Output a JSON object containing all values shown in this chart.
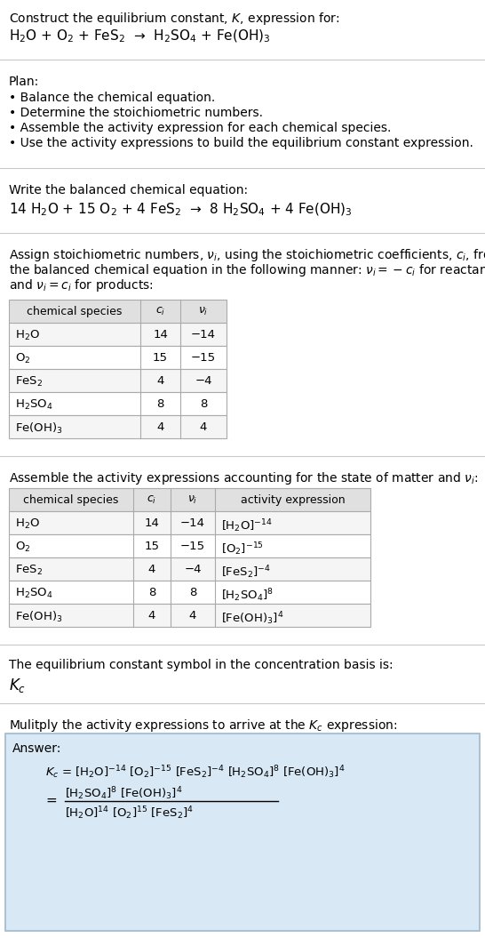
{
  "title_line1": "Construct the equilibrium constant, $K$, expression for:",
  "reaction_unbalanced": "H$_2$O + O$_2$ + FeS$_2$  →  H$_2$SO$_4$ + Fe(OH)$_3$",
  "plan_header": "Plan:",
  "plan_items": [
    "• Balance the chemical equation.",
    "• Determine the stoichiometric numbers.",
    "• Assemble the activity expression for each chemical species.",
    "• Use the activity expressions to build the equilibrium constant expression."
  ],
  "balanced_header": "Write the balanced chemical equation:",
  "reaction_balanced": "14 H$_2$O + 15 O$_2$ + 4 FeS$_2$  →  8 H$_2$SO$_4$ + 4 Fe(OH)$_3$",
  "stoich_intro_lines": [
    "Assign stoichiometric numbers, $\\nu_i$, using the stoichiometric coefficients, $c_i$, from",
    "the balanced chemical equation in the following manner: $\\nu_i = -c_i$ for reactants",
    "and $\\nu_i = c_i$ for products:"
  ],
  "table1_headers": [
    "chemical species",
    "$c_i$",
    "$\\nu_i$"
  ],
  "table1_data": [
    [
      "H$_2$O",
      "14",
      "−14"
    ],
    [
      "O$_2$",
      "15",
      "−15"
    ],
    [
      "FeS$_2$",
      "4",
      "−4"
    ],
    [
      "H$_2$SO$_4$",
      "8",
      "8"
    ],
    [
      "Fe(OH)$_3$",
      "4",
      "4"
    ]
  ],
  "activity_intro": "Assemble the activity expressions accounting for the state of matter and $\\nu_i$:",
  "table2_headers": [
    "chemical species",
    "$c_i$",
    "$\\nu_i$",
    "activity expression"
  ],
  "table2_data": [
    [
      "H$_2$O",
      "14",
      "−14",
      "[H$_2$O]$^{-14}$"
    ],
    [
      "O$_2$",
      "15",
      "−15",
      "[O$_2$]$^{-15}$"
    ],
    [
      "FeS$_2$",
      "4",
      "−4",
      "[FeS$_2$]$^{-4}$"
    ],
    [
      "H$_2$SO$_4$",
      "8",
      "8",
      "[H$_2$SO$_4$]$^8$"
    ],
    [
      "Fe(OH)$_3$",
      "4",
      "4",
      "[Fe(OH)$_3$]$^4$"
    ]
  ],
  "kc_text": "The equilibrium constant symbol in the concentration basis is:",
  "kc_symbol": "$K_c$",
  "multiply_text": "Mulitply the activity expressions to arrive at the $K_c$ expression:",
  "answer_label": "Answer:",
  "answer_line1": "$K_c$ = [H$_2$O]$^{-14}$ [O$_2$]$^{-15}$ [FeS$_2$]$^{-4}$ [H$_2$SO$_4$]$^8$ [Fe(OH)$_3$]$^4$",
  "answer_eq": "=",
  "answer_num": "[H$_2$SO$_4$]$^8$ [Fe(OH)$_3$]$^4$",
  "answer_den": "[H$_2$O]$^{14}$ [O$_2$]$^{15}$ [FeS$_2$]$^4$",
  "bg_color": "#ffffff",
  "sep_color": "#c8c8c8",
  "table_hdr_bg": "#e0e0e0",
  "table_odd_bg": "#f5f5f5",
  "table_even_bg": "#ffffff",
  "table_border": "#aaaaaa",
  "answer_bg": "#d8e8f5",
  "answer_border": "#a0b8cc",
  "font_size": 10.0
}
